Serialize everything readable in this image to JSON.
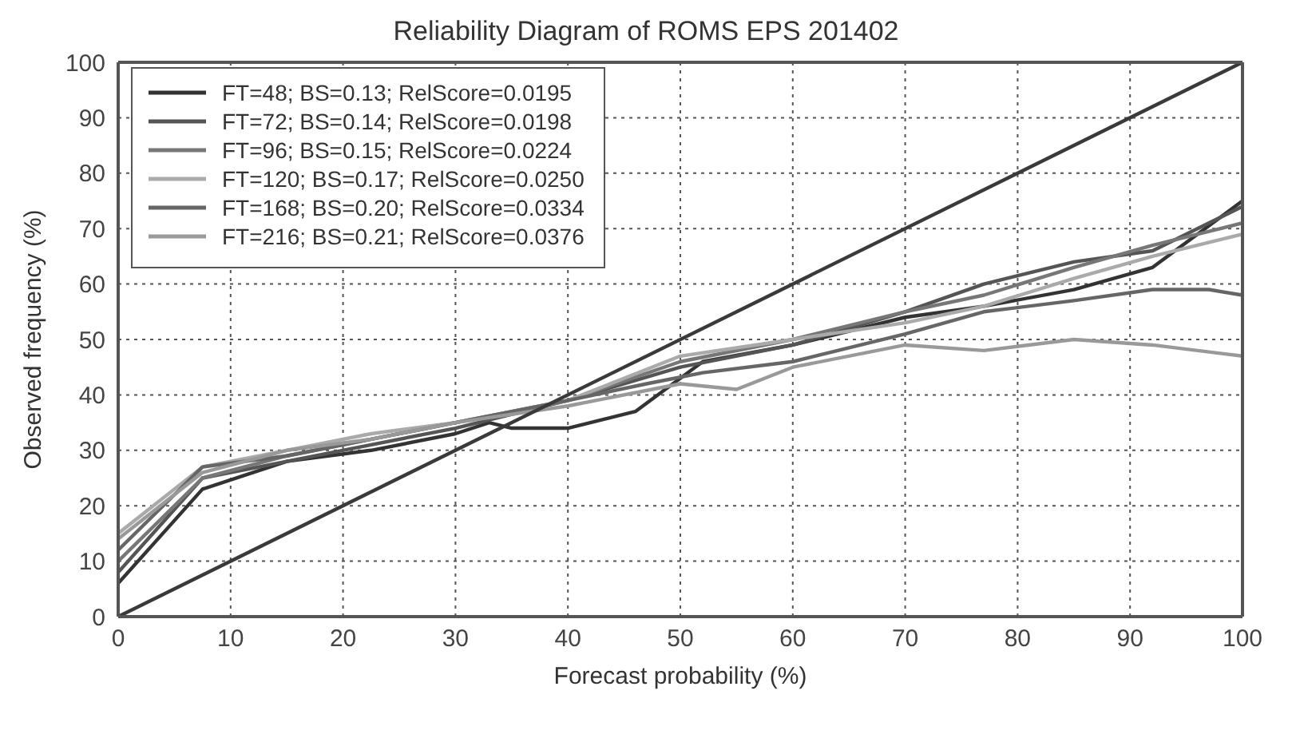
{
  "chart_data": {
    "type": "line",
    "title": "Reliability Diagram of ROMS EPS 201402",
    "xlabel": "Forecast probability (%)",
    "ylabel": "Observed frequency (%)",
    "xlim": [
      0,
      100
    ],
    "xticks": [
      0,
      10,
      20,
      30,
      40,
      50,
      60,
      70,
      80,
      90,
      100
    ],
    "ylim": [
      0,
      100
    ],
    "yticks": [
      0,
      10,
      20,
      30,
      40,
      50,
      60,
      70,
      80,
      90,
      100
    ],
    "grid": true,
    "legend": "top left",
    "marker": "none",
    "line_style": "solid",
    "series": [
      {
        "name": "FT=48; BS=0.13; RelScore=0.0195",
        "color": "#333333",
        "x": [
          0,
          7.5,
          15,
          22.5,
          30,
          33,
          35,
          40,
          46,
          52,
          60,
          70,
          77,
          85,
          92,
          100
        ],
        "values": [
          6,
          23,
          28,
          30,
          33,
          35,
          34,
          34,
          37,
          46,
          49,
          54,
          56,
          59,
          63,
          75
        ]
      },
      {
        "name": "FT=72; BS=0.14; RelScore=0.0198",
        "color": "#555555",
        "x": [
          0,
          7.5,
          15,
          22.5,
          30,
          40,
          50,
          60,
          70,
          77,
          85,
          92,
          100
        ],
        "values": [
          8,
          25,
          28,
          31,
          34,
          39,
          45,
          49,
          55,
          60,
          64,
          66,
          74
        ]
      },
      {
        "name": "FT=96; BS=0.15; RelScore=0.0224",
        "color": "#777777",
        "x": [
          0,
          7.5,
          15,
          22.5,
          30,
          40,
          50,
          60,
          70,
          77,
          85,
          92,
          100
        ],
        "values": [
          10,
          25,
          29,
          32,
          35,
          39,
          46,
          50,
          55,
          58,
          63,
          67,
          71
        ]
      },
      {
        "name": "FT=120; BS=0.17; RelScore=0.0250",
        "color": "#aaaaaa",
        "x": [
          0,
          7.5,
          15,
          22.5,
          30,
          40,
          50,
          60,
          70,
          77,
          85,
          92,
          100
        ],
        "values": [
          15,
          27,
          30,
          33,
          35,
          39,
          47,
          50,
          53,
          56,
          61,
          65,
          69
        ]
      },
      {
        "name": "FT=168; BS=0.20; RelScore=0.0334",
        "color": "#666666",
        "x": [
          0,
          7.5,
          15,
          22.5,
          30,
          40,
          47,
          52,
          60,
          70,
          77,
          85,
          92,
          97,
          100
        ],
        "values": [
          12,
          27,
          29,
          32,
          35,
          39,
          42,
          44,
          46,
          51,
          55,
          57,
          59,
          59,
          58
        ]
      },
      {
        "name": "FT=216; BS=0.21; RelScore=0.0376",
        "color": "#999999",
        "x": [
          0,
          7.5,
          15,
          22.5,
          30,
          40,
          50,
          55,
          60,
          70,
          77,
          85,
          92,
          100
        ],
        "values": [
          14,
          26,
          30,
          32,
          35,
          38,
          42,
          41,
          45,
          49,
          48,
          50,
          49,
          47
        ]
      },
      {
        "color": "#3a3a3a",
        "x": [
          0,
          100
        ],
        "values": [
          0,
          100
        ]
      }
    ]
  }
}
